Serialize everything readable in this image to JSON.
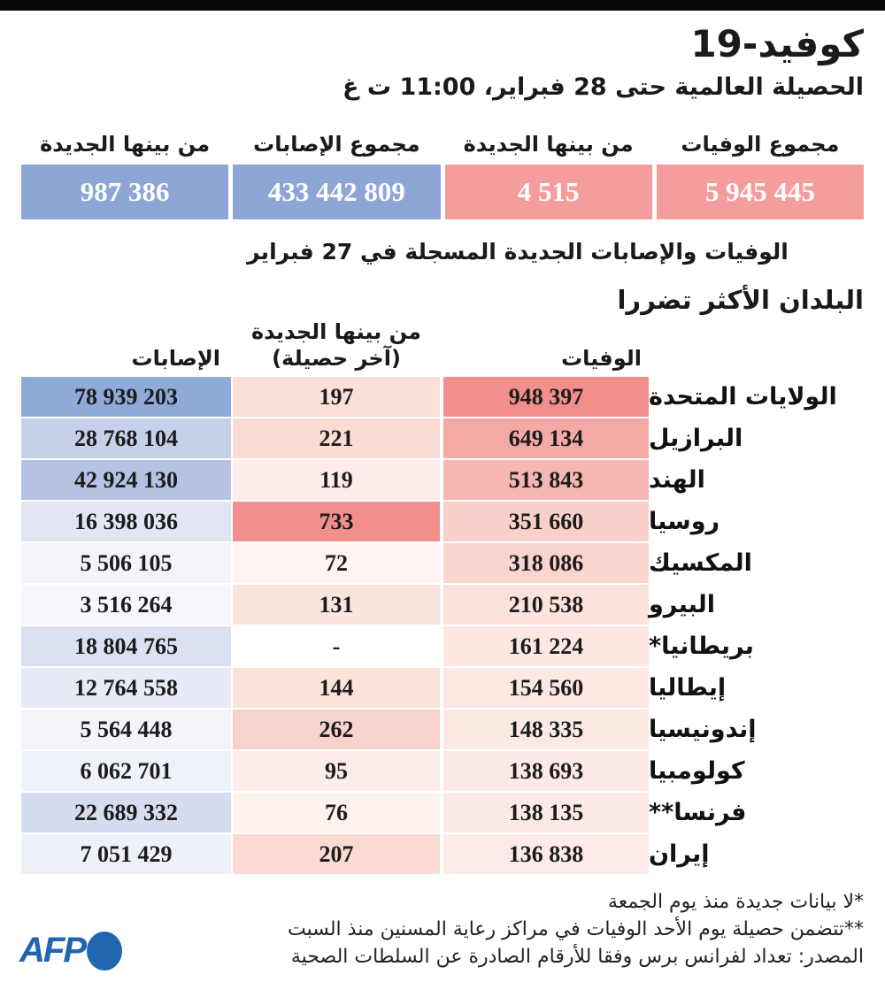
{
  "title": "كوفيد-19",
  "subtitle": "الحصيلة العالمية حتى 28 فبراير، 11:00 ت غ",
  "colors": {
    "accent_blue": "#8EA6D6",
    "accent_pink": "#F59C9C",
    "afp_blue": "#2066AE",
    "topbar_black": "#0a0a0a"
  },
  "summary": {
    "cards": [
      {
        "key": "new-cases",
        "label": "من بينها الجديدة",
        "value": "987 386",
        "color": "#8EA6D6"
      },
      {
        "key": "total-cases",
        "label": "مجموع الإصابات",
        "value": "433 442 809",
        "color": "#8EA6D6"
      },
      {
        "key": "new-deaths",
        "label": "من بينها الجديدة",
        "value": "4 515",
        "color": "#F59C9C"
      },
      {
        "key": "total-deaths",
        "label": "مجموع الوفيات",
        "value": "5 945 445",
        "color": "#F59C9C"
      }
    ],
    "note": "الوفيات والإصابات الجديدة المسجلة في 27 فبراير"
  },
  "table": {
    "section_title": "البلدان الأكثر تضررا",
    "headers": {
      "cases": "الإصابات",
      "new_line1": "من بينها الجديدة",
      "new_line2": "(آخر حصيلة)",
      "deaths": "الوفيات"
    },
    "rows": [
      {
        "country": "الولايات المتحدة",
        "deaths": "948 397",
        "new": "197",
        "cases": "78 939 203",
        "deaths_bg": "#F28E8B",
        "new_bg": "#FBDFD9",
        "cases_bg": "#8FA9D9"
      },
      {
        "country": "البرازيل",
        "deaths": "649 134",
        "new": "221",
        "cases": "28 768 104",
        "deaths_bg": "#F5A9A5",
        "new_bg": "#FADCD4",
        "cases_bg": "#C7D0E8"
      },
      {
        "country": "الهند",
        "deaths": "513 843",
        "new": "119",
        "cases": "42 924 130",
        "deaths_bg": "#F6B7B2",
        "new_bg": "#FEECE8",
        "cases_bg": "#B5C2E3"
      },
      {
        "country": "روسيا",
        "deaths": "351 660",
        "new": "733",
        "cases": "16 398 036",
        "deaths_bg": "#F9CFC9",
        "new_bg": "#F28F8C",
        "cases_bg": "#E2E6F3"
      },
      {
        "country": "المكسيك",
        "deaths": "318 086",
        "new": "72",
        "cases": "5 506 105",
        "deaths_bg": "#FAD4CE",
        "new_bg": "#FEF4F1",
        "cases_bg": "#F2F4FA"
      },
      {
        "country": "البيرو",
        "deaths": "210 538",
        "new": "131",
        "cases": "3 516 264",
        "deaths_bg": "#FCE2DD",
        "new_bg": "#FCE5DE",
        "cases_bg": "#F6F7FC"
      },
      {
        "country": "بريطانيا*",
        "deaths": "161 224",
        "new": "-",
        "cases": "18 804 765",
        "deaths_bg": "#FCE7E2",
        "new_bg": "#FFFFFF",
        "cases_bg": "#DCE1F1"
      },
      {
        "country": "إيطاليا",
        "deaths": "154 560",
        "new": "144",
        "cases": "12 764 558",
        "deaths_bg": "#FDE8E3",
        "new_bg": "#FBE2DB",
        "cases_bg": "#E8EBF6"
      },
      {
        "country": "إندونيسيا",
        "deaths": "148 335",
        "new": "262",
        "cases": "5 564 448",
        "deaths_bg": "#FDE9E4",
        "new_bg": "#F8D2CC",
        "cases_bg": "#F2F4FA"
      },
      {
        "country": "كولومبيا",
        "deaths": "138 693",
        "new": "95",
        "cases": "6 062 701",
        "deaths_bg": "#FDEAE6",
        "new_bg": "#FDEDEA",
        "cases_bg": "#F0F2F9"
      },
      {
        "country": "فرنسا**",
        "deaths": "138 135",
        "new": "76",
        "cases": "22 689 332",
        "deaths_bg": "#FDEAE6",
        "new_bg": "#FEF2EF",
        "cases_bg": "#D6DCEF"
      },
      {
        "country": "إيران",
        "deaths": "136 838",
        "new": "207",
        "cases": "7 051 429",
        "deaths_bg": "#FDEBE7",
        "new_bg": "#FADAD3",
        "cases_bg": "#EFF1F8"
      }
    ]
  },
  "footnotes": [
    "*لا بيانات جديدة منذ يوم الجمعة",
    "**تتضمن حصيلة يوم الأحد الوفيات في مراكز رعاية المسنين منذ السبت",
    "المصدر: تعداد لفرانس برس وفقا للأرقام الصادرة عن السلطات الصحية"
  ],
  "logo": {
    "text": "AFP"
  },
  "chart_data": {
    "type": "table",
    "title": "كوفيد-19",
    "subtitle": "الحصيلة العالمية حتى 28 فبراير، 11:00 ت غ",
    "global_totals": {
      "total_deaths": 5945445,
      "new_deaths": 4515,
      "total_cases": 433442809,
      "new_cases": 987386,
      "note": "الوفيات والإصابات الجديدة المسجلة في 27 فبراير"
    },
    "columns": [
      "country",
      "deaths",
      "new_cases_latest_toll",
      "cases"
    ],
    "rows": [
      [
        "الولايات المتحدة",
        948397,
        197,
        78939203
      ],
      [
        "البرازيل",
        649134,
        221,
        28768104
      ],
      [
        "الهند",
        513843,
        119,
        42924130
      ],
      [
        "روسيا",
        351660,
        733,
        16398036
      ],
      [
        "المكسيك",
        318086,
        72,
        5506105
      ],
      [
        "البيرو",
        210538,
        131,
        3516264
      ],
      [
        "بريطانيا*",
        161224,
        null,
        18804765
      ],
      [
        "إيطاليا",
        154560,
        144,
        12764558
      ],
      [
        "إندونيسيا",
        148335,
        262,
        5564448
      ],
      [
        "كولومبيا",
        138693,
        95,
        6062701
      ],
      [
        "فرنسا**",
        138135,
        76,
        22689332
      ],
      [
        "إيران",
        136838,
        207,
        7051429
      ]
    ],
    "layout_hints": {
      "heatmap": true,
      "deaths_new_color_max": "#F28F8C",
      "cases_color_max": "#8FA9D9",
      "rtl": true
    }
  }
}
